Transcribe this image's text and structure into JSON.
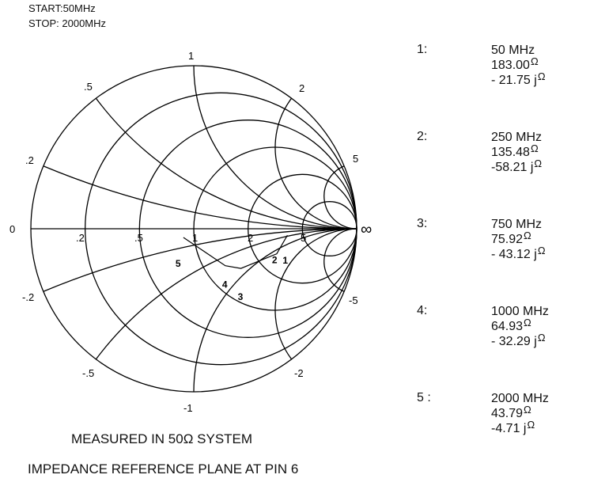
{
  "header": {
    "start": "START:50MHz",
    "stop": "STOP: 2000MHz"
  },
  "smith_labels": {
    "resistance": [
      ".2",
      ".5",
      "1",
      "2",
      "5"
    ],
    "reactance_pos": [
      ".2",
      ".5",
      "1",
      "2",
      "5"
    ],
    "reactance_neg": [
      "-.2",
      "-.5",
      "-1",
      "-2",
      "-5"
    ],
    "zero": "0",
    "infinity": "∞"
  },
  "ohm_symbol": "Ω",
  "markers": [
    {
      "index": "1:",
      "freq": "50 MHz",
      "r": "183.00",
      "x": "- 21.75 j",
      "ohm_after_r": "Ω",
      "ohm_after_x": "Ω"
    },
    {
      "index": "2:",
      "freq": "250 MHz",
      "r": "135.48",
      "x": "-58.21 j",
      "ohm_after_r": "Ω",
      "ohm_after_x": "Ω"
    },
    {
      "index": "3:",
      "freq": "750 MHz",
      "r": "75.92",
      "x": "- 43.12 j",
      "ohm_after_r": "Ω",
      "ohm_after_x": "Ω"
    },
    {
      "index": "4:",
      "freq": "1000 MHz",
      "r": "64.93",
      "x": "- 32.29  j",
      "ohm_after_r": "Ω",
      "ohm_after_x": "Ω"
    },
    {
      "index": "5 :",
      "freq": "2000 MHz",
      "r": "43.79",
      "x": "-4.71 j",
      "ohm_after_r": "Ω",
      "ohm_after_x": "Ω"
    }
  ],
  "chart_data": {
    "type": "scatter",
    "chart_kind": "smith chart",
    "reference_impedance_ohm": 50,
    "points": [
      {
        "label": "1",
        "freq_mhz": 50,
        "r_ohm": 183.0,
        "x_ohm": -21.75
      },
      {
        "label": "2",
        "freq_mhz": 250,
        "r_ohm": 135.48,
        "x_ohm": -58.21
      },
      {
        "label": "3",
        "freq_mhz": 750,
        "r_ohm": 75.92,
        "x_ohm": -43.12
      },
      {
        "label": "4",
        "freq_mhz": 1000,
        "r_ohm": 64.93,
        "x_ohm": -32.29
      },
      {
        "label": "5",
        "freq_mhz": 2000,
        "r_ohm": 43.79,
        "x_ohm": -4.71
      }
    ]
  },
  "footer": {
    "line1_a": "MEASURED IN 50",
    "line1_b": "SYSTEM",
    "line2": "IMPEDANCE REFERENCE PLANE AT PIN 6"
  }
}
